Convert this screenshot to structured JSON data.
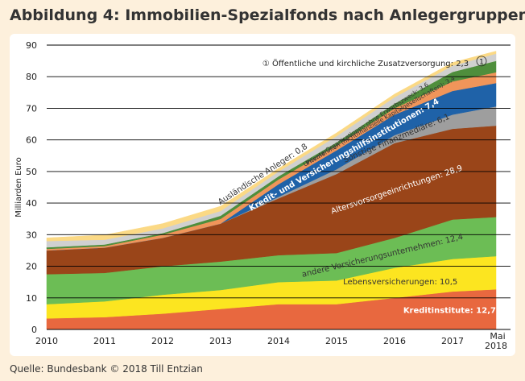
{
  "title": "Abbildung 4: Immobilien-Spezialfonds nach Anlegergruppen",
  "source": "Quelle: Bundesbank © 2018 Till Entzian",
  "chart_data": {
    "type": "area",
    "stacked": true,
    "title": "Abbildung 4: Immobilien-Spezialfonds nach Anlegergruppen",
    "xlabel": "",
    "ylabel": "Milliarden Euro",
    "ylim": [
      0,
      90
    ],
    "yticks": [
      0,
      10,
      20,
      30,
      40,
      50,
      60,
      70,
      80,
      90
    ],
    "grid": "horizontal",
    "legend": "inline-labels",
    "x": [
      "2010",
      "2011",
      "2012",
      "2013",
      "2014",
      "2015",
      "2016",
      "2017",
      "Mai 2018"
    ],
    "x_positions": [
      2010,
      2011,
      2012,
      2013,
      2014,
      2015,
      2016,
      2017,
      2017.75
    ],
    "series": [
      {
        "name": "Kreditinstitute: 12,7",
        "color": "#e8683f",
        "label_color": "#ffffff",
        "values": [
          3.5,
          3.9,
          5.0,
          6.5,
          8.0,
          8.0,
          10.0,
          12.0,
          12.7
        ]
      },
      {
        "name": "Lebensversicherungen: 10,5",
        "color": "#fce520",
        "label_color": "#333333",
        "values": [
          4.5,
          5.0,
          6.0,
          6.0,
          7.0,
          7.5,
          9.5,
          10.3,
          10.5
        ]
      },
      {
        "name": "andere Versicherungsunternehmen: 12,4",
        "color": "#6cbd55",
        "label_color": "#333333",
        "values": [
          9.5,
          9.0,
          9.0,
          9.0,
          8.5,
          8.7,
          9.5,
          12.5,
          12.4
        ]
      },
      {
        "name": "Altersvorsorgeeinrichtungen: 28,9",
        "color": "#9a4519",
        "label_color": "#ffffff",
        "values": [
          7.5,
          8.0,
          9.0,
          12.0,
          18.0,
          25.0,
          30.0,
          28.7,
          28.9
        ]
      },
      {
        "name": "Sonstige Finanzmediäre: 6,1",
        "color": "#9e9e9e",
        "label_color": "#333333",
        "values": [
          0,
          0,
          0,
          0,
          0.5,
          1.5,
          2.5,
          4.5,
          6.1
        ]
      },
      {
        "name": "Kredit- und Versicherungshilfsinstitutionen: 7,4",
        "color": "#1f62a8",
        "label_color": "#ffffff",
        "values": [
          0,
          0,
          0,
          0,
          4.0,
          6.0,
          6.5,
          7.5,
          7.4
        ]
      },
      {
        "name": "Unternehmen (nichtfinanzielle Kapitalgesellschaften): 3,4",
        "color": "#f0955a",
        "label_color": "#333333",
        "values": [
          0.5,
          0.5,
          1.0,
          1.5,
          1.5,
          1.5,
          2.0,
          3.0,
          3.4
        ]
      },
      {
        "name": "Private Organisationen ohne Erwerbszweck: 3,6",
        "color": "#4f8e3c",
        "label_color": "#333333",
        "values": [
          0.5,
          0.5,
          0.5,
          1.0,
          1.0,
          1.0,
          1.5,
          3.0,
          3.6
        ]
      },
      {
        "name": "Öffentliche und kirchliche Zusatzversorgung: 2,3",
        "color": "#d0d0d0",
        "label_color": "#333333",
        "values": [
          2.0,
          1.5,
          1.5,
          1.5,
          1.5,
          2.0,
          2.0,
          2.0,
          2.3
        ]
      },
      {
        "name": "Ausländische Anleger: 0,8",
        "color": "#fbd985",
        "label_color": "#333333",
        "values": [
          1.0,
          1.5,
          1.5,
          1.5,
          1.0,
          1.0,
          1.0,
          1.0,
          0.8
        ]
      }
    ],
    "annotations": [
      {
        "marker": "①",
        "text": "① Öffentliche und kirchliche Zusatzversorgung: 2,3"
      }
    ]
  }
}
